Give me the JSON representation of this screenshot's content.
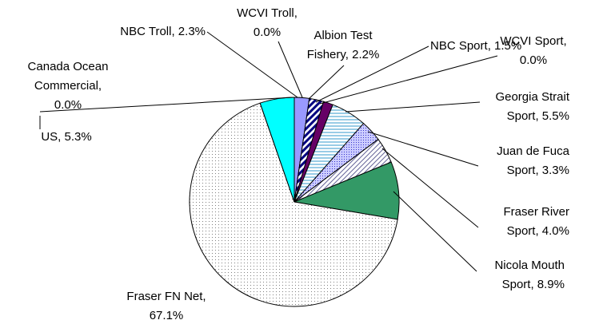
{
  "chart_data": {
    "type": "pie",
    "categories": [
      [
        "NBC Troll, 2.3%"
      ],
      [
        "WCVI Troll,",
        "0.0%"
      ],
      [
        "Albion Test",
        "Fishery, 2.2%"
      ],
      [
        "NBC Sport, 1.5%"
      ],
      [
        "WCVI Sport,",
        "0.0%"
      ],
      [
        "Georgia Strait",
        "Sport, 5.5%"
      ],
      [
        "Juan de Fuca",
        "Sport, 3.3%"
      ],
      [
        "Fraser River",
        "Sport, 4.0%"
      ],
      [
        "Nicola Mouth",
        "Sport, 8.9%"
      ],
      [
        "Fraser FN Net,",
        "67.1%"
      ],
      [
        "Canada Ocean",
        "Commercial,",
        "0.0%"
      ],
      [
        "US, 5.3%"
      ]
    ],
    "values": [
      2.3,
      0.0,
      2.2,
      1.5,
      0.0,
      5.5,
      3.3,
      4.0,
      8.9,
      67.1,
      0.0,
      5.3
    ],
    "colors": [
      "#9999ff",
      "#ffffff",
      "#000080",
      "#660066",
      "#ffffff",
      "#3399cc",
      "#3333cc",
      "#666699",
      "#339966",
      "#808080",
      "#ffffff",
      "#00ffff"
    ],
    "patterns": [
      "solid",
      "solid",
      "diagonal",
      "solid",
      "solid",
      "horizontal",
      "dense-dots",
      "thin-diagonal",
      "solid",
      "sparse-dots",
      "solid",
      "solid"
    ]
  }
}
